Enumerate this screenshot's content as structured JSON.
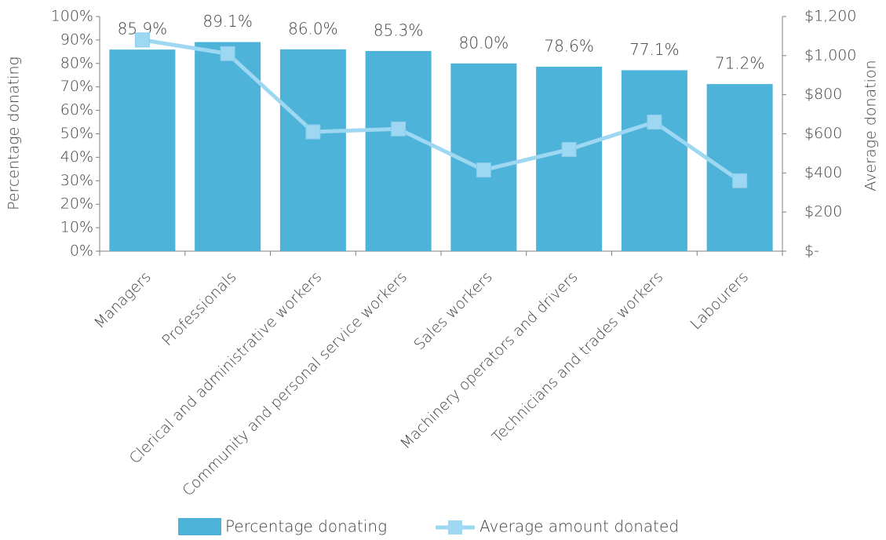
{
  "chart_data": {
    "type": "bar",
    "categories": [
      "Managers",
      "Professionals",
      "Clerical and administrative workers",
      "Community and personal service workers",
      "Sales workers",
      "Machinery operators and drivers",
      "Technicians and trades workers",
      "Labourers"
    ],
    "series": [
      {
        "name": "Percentage donating",
        "type": "bar",
        "color": "#4eb3d8",
        "values": [
          85.9,
          89.1,
          86.0,
          85.3,
          80.0,
          78.6,
          77.1,
          71.2
        ],
        "value_labels": [
          "85.9%",
          "89.1%",
          "86.0%",
          "85.3%",
          "80.0%",
          "78.6%",
          "77.1%",
          "71.2%"
        ]
      },
      {
        "name": "Average amount donated",
        "type": "line",
        "axis": "y2",
        "color": "#9dd7f2",
        "values": [
          1080,
          1010,
          610,
          625,
          415,
          520,
          660,
          360
        ]
      }
    ],
    "ylabel": "Percentage donating",
    "y2label": "Average donation",
    "ylim": [
      0,
      100
    ],
    "yticks": [
      {
        "value": 0,
        "label": "0%"
      },
      {
        "value": 10,
        "label": "10%"
      },
      {
        "value": 20,
        "label": "20%"
      },
      {
        "value": 30,
        "label": "30%"
      },
      {
        "value": 40,
        "label": "40%"
      },
      {
        "value": 50,
        "label": "50%"
      },
      {
        "value": 60,
        "label": "60%"
      },
      {
        "value": 70,
        "label": "70%"
      },
      {
        "value": 80,
        "label": "80%"
      },
      {
        "value": 90,
        "label": "90%"
      },
      {
        "value": 100,
        "label": "100%"
      }
    ],
    "y2lim": [
      0,
      1200
    ],
    "y2ticks": [
      {
        "value": 0,
        "label": "$-"
      },
      {
        "value": 200,
        "label": "$200"
      },
      {
        "value": 400,
        "label": "$400"
      },
      {
        "value": 600,
        "label": "$600"
      },
      {
        "value": 800,
        "label": "$800"
      },
      {
        "value": 1000,
        "label": "$1,000"
      },
      {
        "value": 1200,
        "label": "$1,200"
      }
    ],
    "legend": "bottom"
  }
}
